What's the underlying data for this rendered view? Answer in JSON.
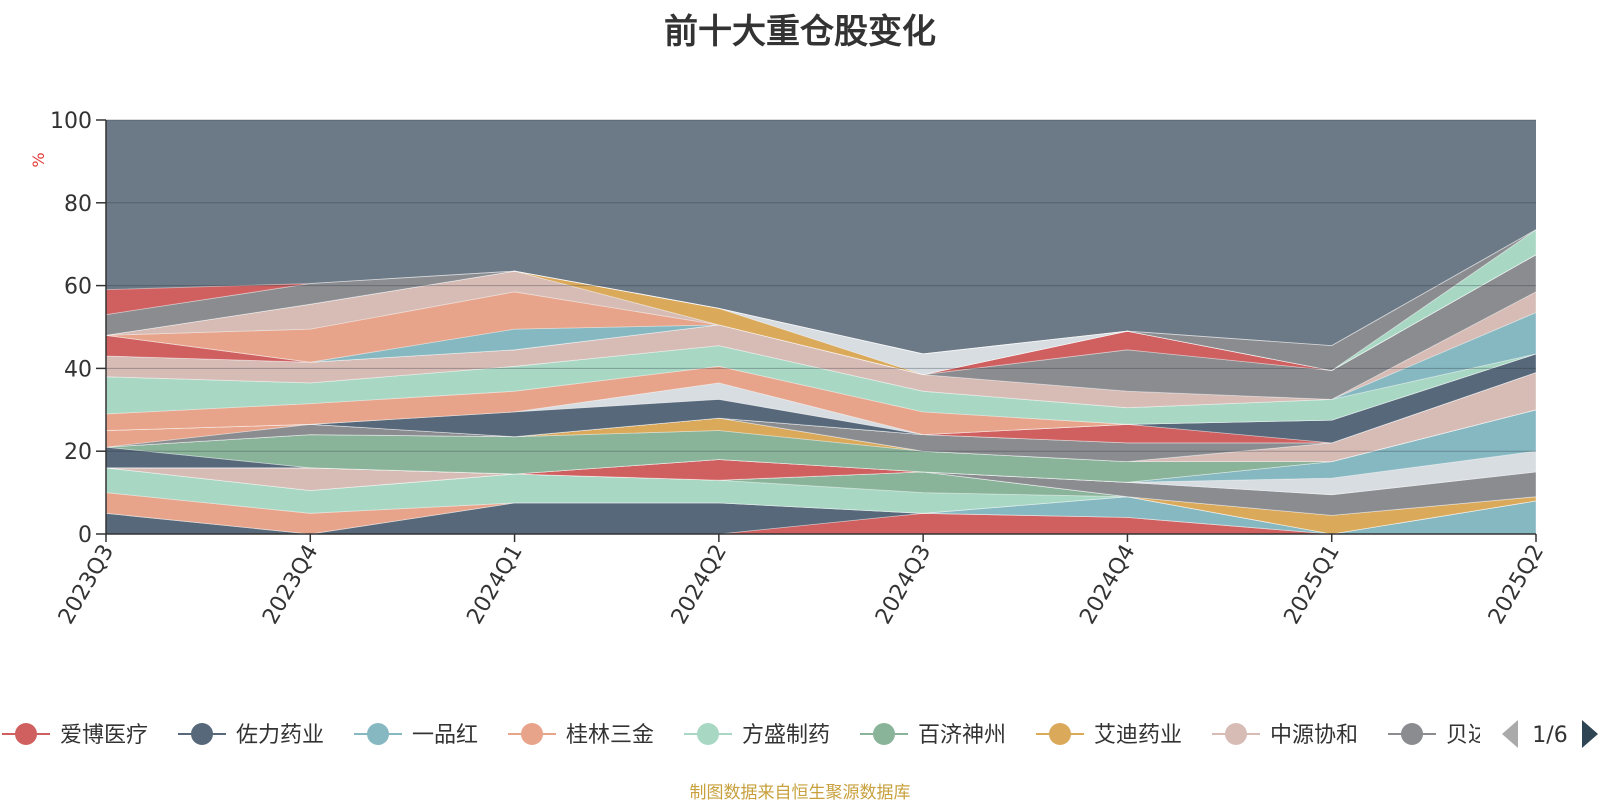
{
  "chart_data": {
    "type": "area",
    "title": "前十大重仓股变化",
    "ylabel": "%",
    "xlabel": "",
    "ylim": [
      0,
      100
    ],
    "y_ticks": [
      "0",
      "20",
      "40",
      "60",
      "80",
      "100"
    ],
    "categories": [
      "2023Q3",
      "2023Q4",
      "2024Q1",
      "2024Q2",
      "2024Q3",
      "2024Q4",
      "2025Q1",
      "2025Q2"
    ],
    "series": [
      {
        "name": "爱博医疗",
        "color": "#d06060",
        "values": [
          0,
          0,
          0,
          0,
          5,
          4,
          0,
          0
        ]
      },
      {
        "name": "佐力药业",
        "color": "#56687a",
        "values": [
          5,
          0,
          7.5,
          7.5,
          0,
          0,
          0,
          0
        ]
      },
      {
        "name": "一品红",
        "color": "#86b8c1",
        "values": [
          0,
          0,
          0,
          0,
          0,
          5,
          0,
          8
        ]
      },
      {
        "name": "桂林三金",
        "color": "#e8a48a",
        "values": [
          5,
          5,
          0,
          0,
          0,
          0,
          0,
          0
        ]
      },
      {
        "name": "方盛制药",
        "color": "#a8d8c4",
        "values": [
          6,
          5.5,
          7,
          5.5,
          5,
          0,
          0,
          0
        ]
      },
      {
        "name": "百济神州",
        "color": "#8ab49a",
        "values": [
          0,
          0,
          0,
          0,
          5,
          0,
          0,
          0
        ]
      },
      {
        "name": "艾迪药业",
        "color": "#dba95a",
        "values": [
          0,
          0,
          0,
          0,
          0,
          0,
          4.5,
          1
        ]
      },
      {
        "name": "中源协和",
        "color": "#d7bcb6",
        "values": [
          0,
          5.5,
          0,
          0,
          0,
          0,
          0,
          0
        ]
      },
      {
        "name": "贝达药业",
        "color": "#8a8c90",
        "values": [
          0,
          0,
          0,
          0,
          0,
          3.5,
          5,
          6
        ]
      },
      {
        "name": "",
        "color": "#d06060",
        "values": [
          0,
          0,
          0,
          5,
          0,
          0,
          0,
          0
        ]
      },
      {
        "name": "",
        "color": "#d8dde2",
        "values": [
          0,
          0,
          0,
          0,
          0,
          0,
          4,
          5
        ]
      },
      {
        "name": "",
        "color": "#86b8c1",
        "values": [
          0,
          0,
          0,
          0,
          0,
          0,
          4,
          10
        ]
      },
      {
        "name": "",
        "color": "#56687a",
        "values": [
          5,
          0,
          0,
          0,
          0,
          0,
          0,
          0
        ]
      },
      {
        "name": "",
        "color": "#8ab49a",
        "values": [
          0,
          8,
          9,
          7,
          5,
          5,
          0,
          0
        ]
      },
      {
        "name": "",
        "color": "#dba95a",
        "values": [
          0,
          0,
          0,
          3,
          0,
          0,
          0,
          0
        ]
      },
      {
        "name": "",
        "color": "#d7bcb6",
        "values": [
          0,
          0,
          0,
          0,
          0,
          0,
          4.5,
          9
        ]
      },
      {
        "name": "",
        "color": "#8a8c90",
        "values": [
          0,
          2.5,
          0,
          0,
          4,
          4.5,
          0,
          0
        ]
      },
      {
        "name": "",
        "color": "#e8a48a",
        "values": [
          4,
          0,
          0,
          0,
          0,
          0,
          0,
          0
        ]
      },
      {
        "name": "",
        "color": "#d06060",
        "values": [
          0,
          0,
          0,
          0,
          0,
          4.5,
          0,
          0
        ]
      },
      {
        "name": "",
        "color": "#56687a",
        "values": [
          0,
          0,
          6,
          4.5,
          0,
          0,
          5.5,
          4.5
        ]
      },
      {
        "name": "",
        "color": "#d8dde2",
        "values": [
          0,
          0,
          0,
          4,
          0,
          0,
          0,
          0
        ]
      },
      {
        "name": "",
        "color": "#e8a48a",
        "values": [
          4,
          5,
          5,
          4,
          5.5,
          0,
          0,
          0
        ]
      },
      {
        "name": "",
        "color": "#a8d8c4",
        "values": [
          9,
          5,
          6,
          5,
          5,
          4,
          5,
          0
        ]
      },
      {
        "name": "",
        "color": "#86b8c1",
        "values": [
          0,
          0,
          0,
          0,
          0,
          0,
          0,
          10
        ]
      },
      {
        "name": "",
        "color": "#d7bcb6",
        "values": [
          5,
          5,
          4,
          5,
          4,
          4,
          0,
          5
        ]
      },
      {
        "name": "",
        "color": "#8a8c90",
        "values": [
          0,
          0,
          0,
          0,
          0,
          10,
          7,
          9
        ]
      },
      {
        "name": "",
        "color": "#d06060",
        "values": [
          5,
          0,
          0,
          0,
          0,
          4.5,
          0,
          0
        ]
      },
      {
        "name": "",
        "color": "#86b8c1",
        "values": [
          0,
          0,
          5,
          0,
          0,
          0,
          0,
          0
        ]
      },
      {
        "name": "",
        "color": "#e8a48a",
        "values": [
          0,
          8,
          9,
          0,
          0,
          0,
          0,
          0
        ]
      },
      {
        "name": "",
        "color": "#d7bcb6",
        "values": [
          0,
          6,
          5,
          0,
          0,
          0,
          0,
          0
        ]
      },
      {
        "name": "",
        "color": "#dba95a",
        "values": [
          0,
          0,
          0,
          4,
          0,
          0,
          0,
          0
        ]
      },
      {
        "name": "",
        "color": "#d8dde2",
        "values": [
          0,
          0,
          0,
          0,
          5,
          0,
          0,
          0
        ]
      },
      {
        "name": "",
        "color": "#a8d8c4",
        "values": [
          0,
          0,
          0,
          0,
          0,
          0,
          0,
          6
        ]
      },
      {
        "name": "",
        "color": "#8a8c90",
        "values": [
          5,
          5,
          0,
          0,
          0,
          0,
          6,
          0
        ]
      },
      {
        "name": "",
        "color": "#d06060",
        "values": [
          6,
          0,
          0,
          0,
          0,
          0,
          0,
          0
        ]
      }
    ],
    "grid": true,
    "legend": {
      "placement": "bottom",
      "visible_items": [
        "爱博医疗",
        "佐力药业",
        "一品红",
        "桂林三金",
        "方盛制药",
        "百济神州",
        "艾迪药业",
        "中源协和",
        "贝达药业"
      ],
      "page": "1/6"
    },
    "plot_background": "#6c7a87"
  },
  "footer": {
    "source": "制图数据来自恒生聚源数据库"
  }
}
